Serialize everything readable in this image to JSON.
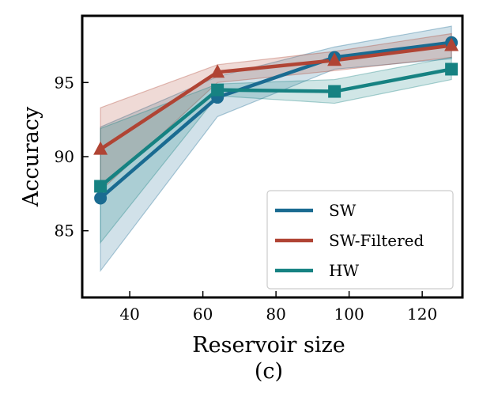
{
  "chart_data": {
    "type": "line",
    "title": "",
    "caption": "(c)",
    "xlabel": "Reservoir size",
    "ylabel": "Accuracy",
    "xlim": [
      27,
      131
    ],
    "ylim": [
      80.5,
      99.5
    ],
    "xticks": [
      40,
      60,
      80,
      100,
      120
    ],
    "yticks": [
      85,
      90,
      95
    ],
    "x": [
      32,
      64,
      96,
      128
    ],
    "series": [
      {
        "name": "SW",
        "color": "#1a6b91",
        "marker": "circle",
        "values": [
          87.2,
          94.0,
          96.7,
          97.7
        ],
        "lower": [
          82.3,
          92.7,
          95.9,
          96.6
        ],
        "upper": [
          92.0,
          95.4,
          97.4,
          98.8
        ]
      },
      {
        "name": "SW-Filtered",
        "color": "#b04434",
        "marker": "triangle",
        "values": [
          90.5,
          95.7,
          96.5,
          97.5
        ],
        "lower": [
          87.7,
          95.0,
          95.8,
          96.7
        ],
        "upper": [
          93.3,
          96.2,
          97.1,
          98.3
        ]
      },
      {
        "name": "HW",
        "color": "#168282",
        "marker": "square",
        "values": [
          88.0,
          94.5,
          94.4,
          95.9
        ],
        "lower": [
          84.2,
          94.1,
          93.6,
          95.2
        ],
        "upper": [
          91.9,
          94.9,
          95.2,
          96.7
        ]
      }
    ],
    "legend_position": "lower-right"
  }
}
